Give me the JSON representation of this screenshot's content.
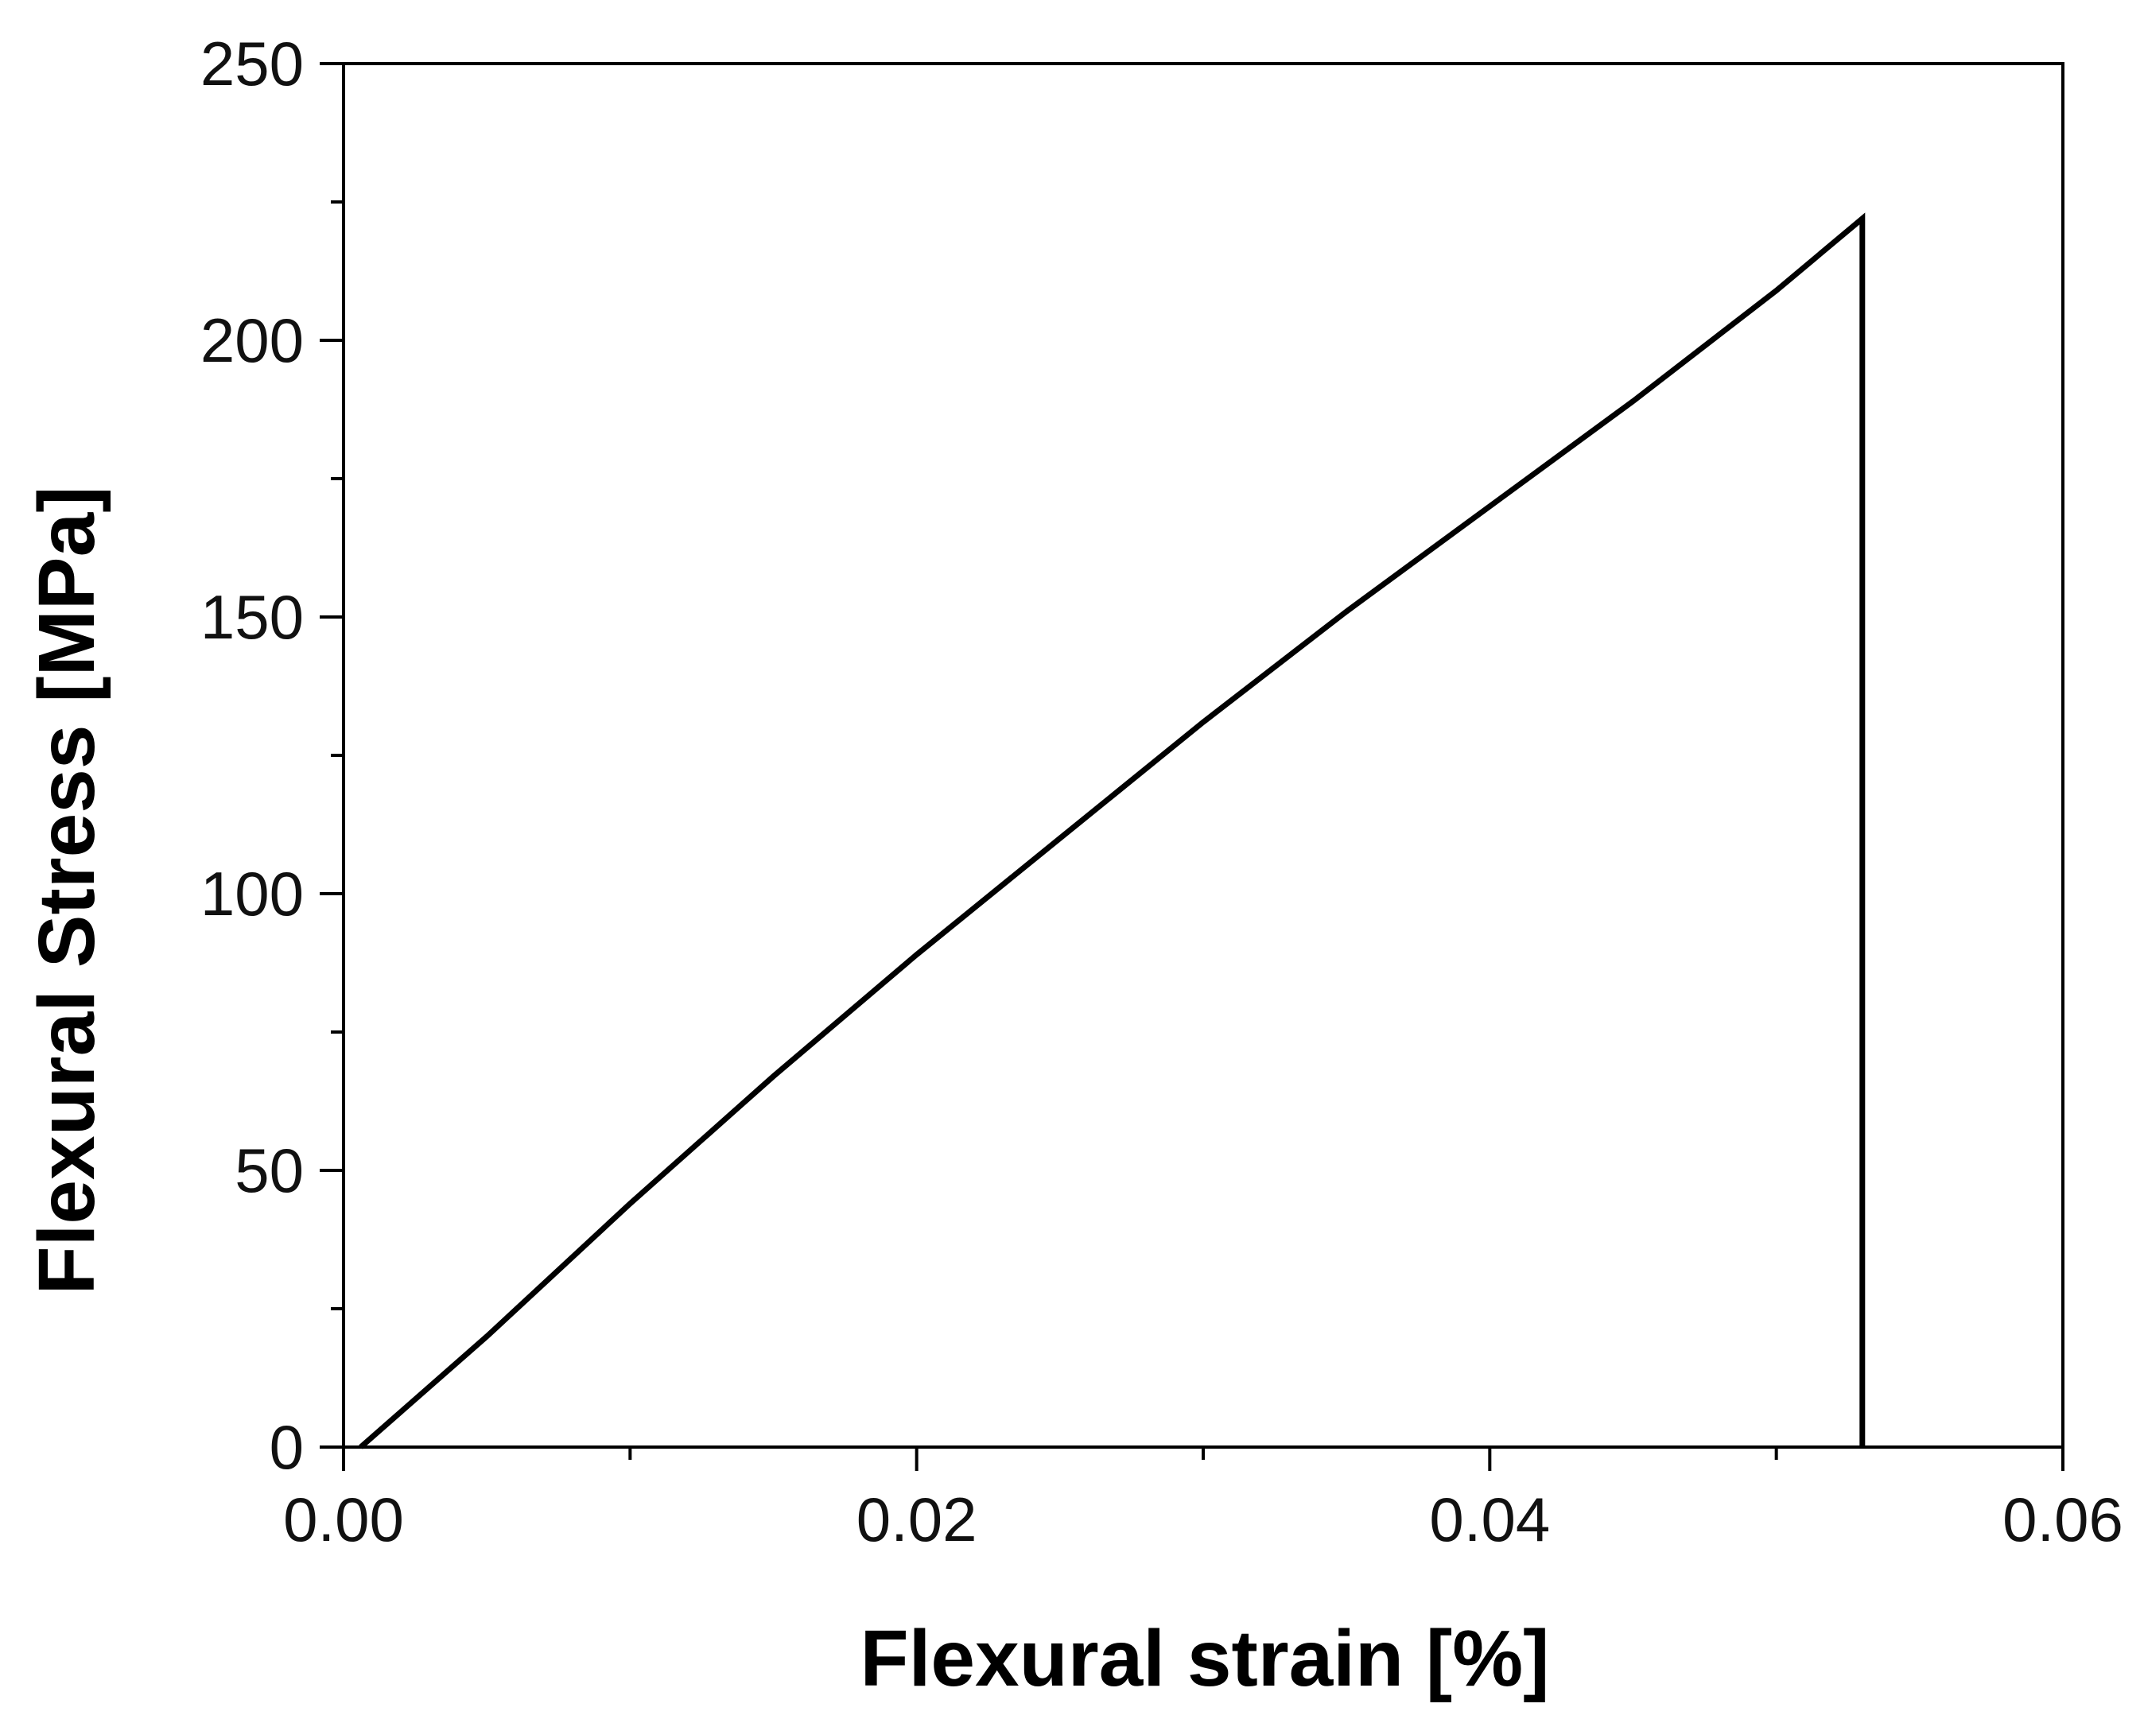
{
  "chart_data": {
    "type": "line",
    "title": "",
    "xlabel": "Flexural strain [%]",
    "ylabel": "Flexural Stress [MPa]",
    "xlim": [
      0.0,
      0.06
    ],
    "ylim": [
      0,
      250
    ],
    "xticks": [
      0.0,
      0.02,
      0.04,
      0.06
    ],
    "xtick_labels": [
      "0.00",
      "0.02",
      "0.04",
      "0.06"
    ],
    "xminor_ticks": [
      0.01,
      0.03,
      0.05
    ],
    "yticks": [
      0,
      50,
      100,
      150,
      200,
      250
    ],
    "ytick_labels": [
      "0",
      "50",
      "100",
      "150",
      "200",
      "250"
    ],
    "yminor_ticks": [
      25,
      75,
      125,
      175,
      225
    ],
    "grid": false,
    "legend": "none",
    "series": [
      {
        "x": [
          0.0006,
          0.005,
          0.01,
          0.015,
          0.02,
          0.025,
          0.03,
          0.035,
          0.04,
          0.045,
          0.05,
          0.053,
          0.053
        ],
        "y": [
          0,
          20,
          44,
          67,
          89,
          110,
          131,
          151,
          170,
          189,
          209,
          222,
          0
        ],
        "color": "#000000"
      }
    ]
  }
}
